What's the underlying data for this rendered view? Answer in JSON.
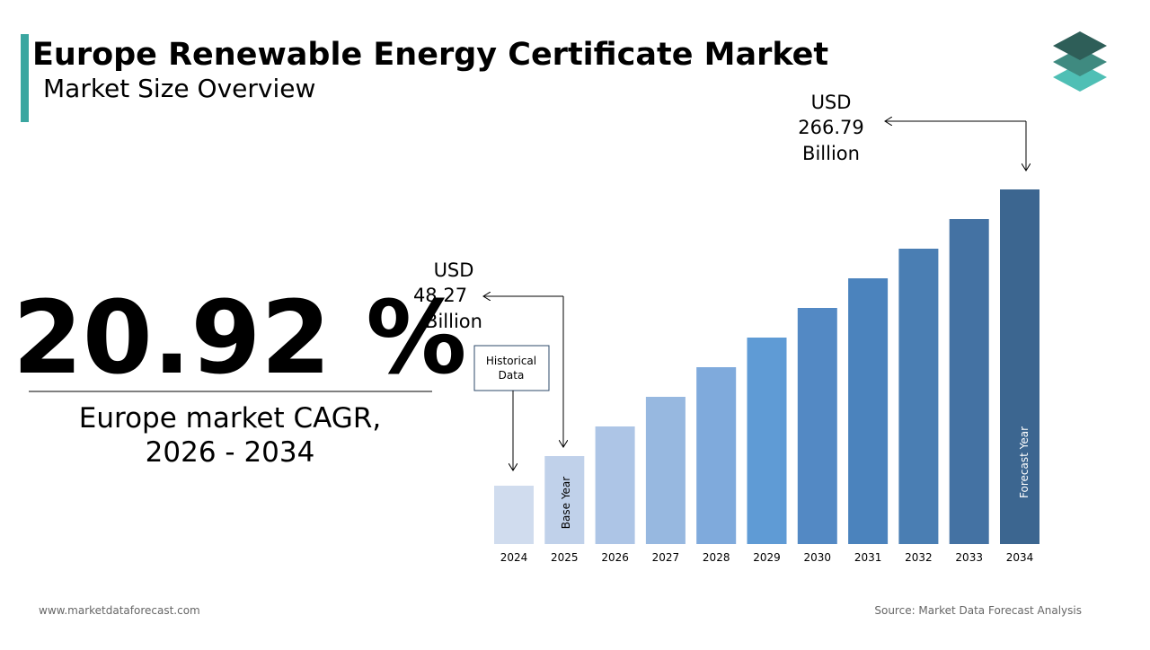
{
  "header": {
    "title": "Europe Renewable Energy Certificate Market",
    "subtitle": "Market Size Overview"
  },
  "cagr": {
    "value": "20.92 %",
    "caption": [
      "Europe market CAGR,",
      "2026 - 2034"
    ]
  },
  "chart_data": {
    "type": "bar",
    "categories": [
      "2024",
      "2025",
      "2026",
      "2027",
      "2028",
      "2029",
      "2030",
      "2031",
      "2032",
      "2033",
      "2034"
    ],
    "colors": [
      "#d0dcee",
      "#c0d1ea",
      "#adc5e6",
      "#97b8e0",
      "#7faadc",
      "#5f9bd5",
      "#5389c4",
      "#4b83bd",
      "#4a7eb3",
      "#4472a3",
      "#3c6690"
    ],
    "annotations": {
      "start": [
        "USD",
        "48.27",
        "Billion"
      ],
      "end": [
        "USD",
        "266.79",
        "Billion"
      ],
      "historical": [
        "Historical",
        "Data"
      ],
      "base_year": "Base Year",
      "forecast_year": "Forecast Year"
    }
  },
  "footer": {
    "website": "www.marketdataforecast.com",
    "source": "Source: Market Data Forecast Analysis"
  }
}
